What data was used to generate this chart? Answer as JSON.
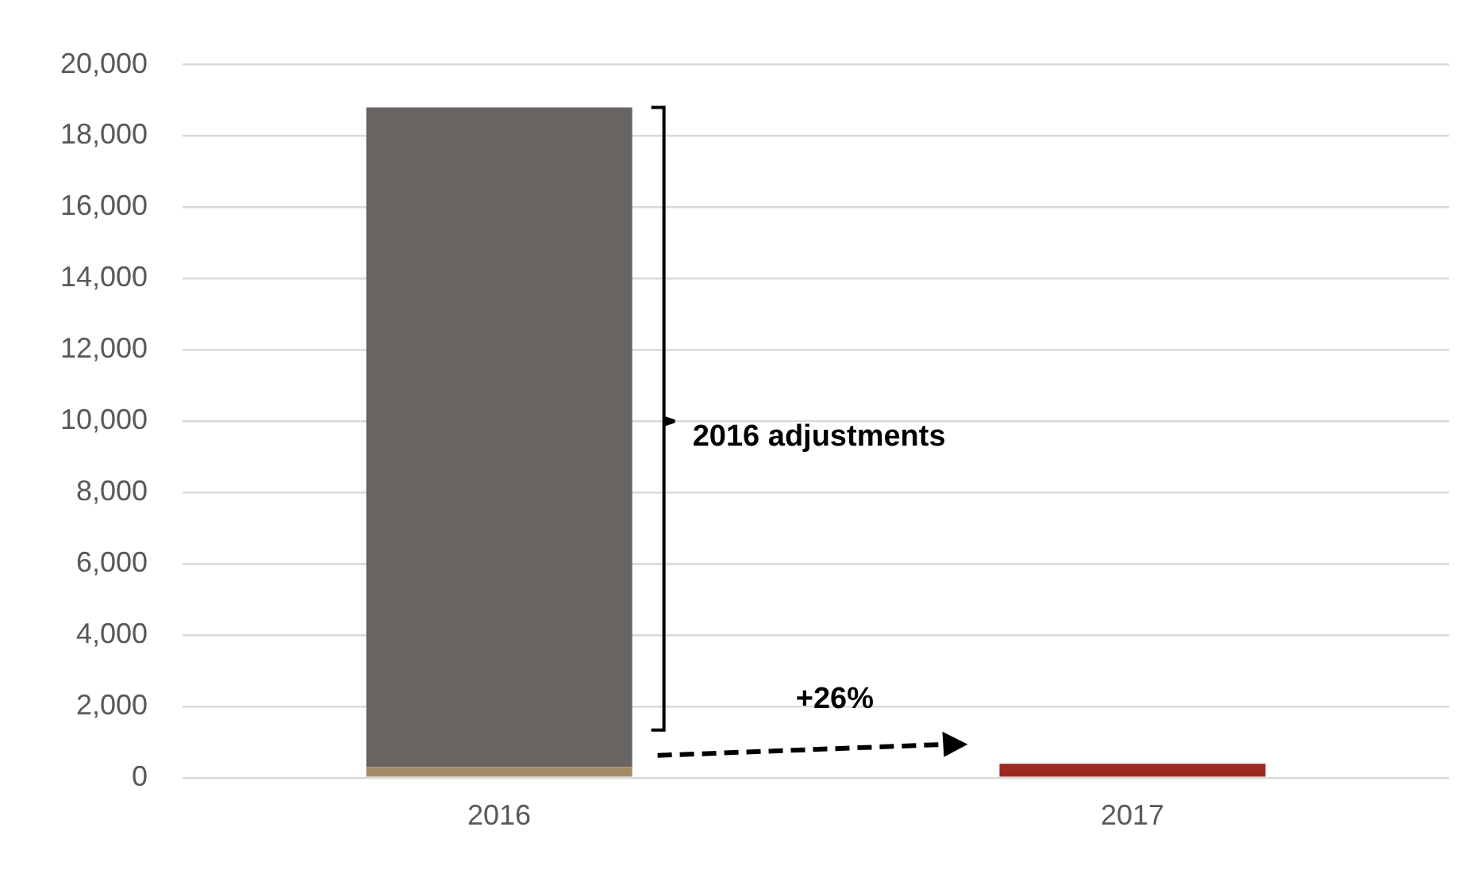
{
  "chart_data": {
    "type": "bar",
    "stacked": true,
    "categories": [
      "2016",
      "2017"
    ],
    "series": [
      {
        "color": "#a68b69",
        "values": [
          300,
          null
        ]
      },
      {
        "color": "#686462",
        "values": [
          18500,
          null
        ]
      },
      {
        "color": "#9c2a1e",
        "values": [
          null,
          390
        ]
      }
    ],
    "ylim": [
      0,
      20000
    ],
    "yticks": [
      0,
      {
        "value": 2000,
        "label": "2,000"
      },
      {
        "value": 4000,
        "label": "4,000"
      },
      {
        "value": 6000,
        "label": "6,000"
      },
      {
        "value": 8000,
        "label": "8,000"
      },
      {
        "value": 10000,
        "label": "10,000"
      },
      {
        "value": 12000,
        "label": "12,000"
      },
      {
        "value": 14000,
        "label": "14,000"
      },
      {
        "value": 16000,
        "label": "16,000"
      },
      {
        "value": 18000,
        "label": "18,000"
      },
      {
        "value": 20000,
        "label": "20,000"
      }
    ],
    "grid": "y",
    "legend": false,
    "annotations": [
      "2016 adjustments",
      "+26%"
    ]
  }
}
